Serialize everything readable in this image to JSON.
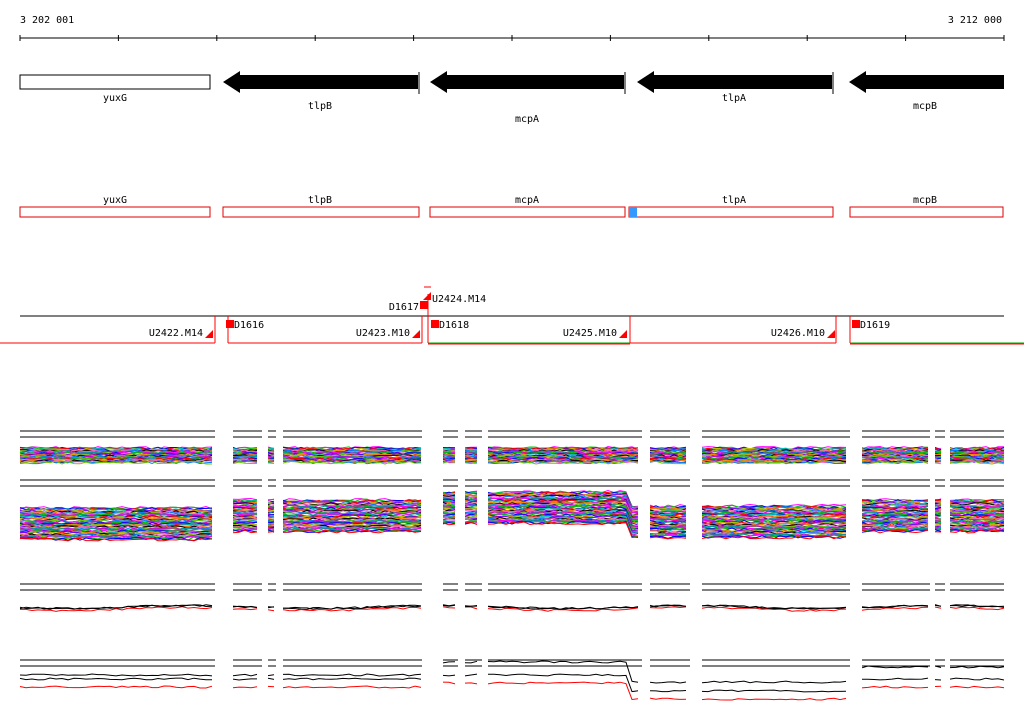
{
  "ruler": {
    "start_label": "3 202 001",
    "end_label": "3 212 000"
  },
  "genes": [
    {
      "name": "yuxG",
      "strand": "+"
    },
    {
      "name": "tlpB",
      "strand": "-"
    },
    {
      "name": "mcpA",
      "strand": "-"
    },
    {
      "name": "tlpA",
      "strand": "-"
    },
    {
      "name": "mcpB",
      "strand": "-"
    }
  ],
  "annotation_track": [
    {
      "name": "yuxG"
    },
    {
      "name": "tlpB"
    },
    {
      "name": "mcpA"
    },
    {
      "name": "tlpA",
      "marker": true
    },
    {
      "name": "mcpB"
    }
  ],
  "features": {
    "downstream": [
      "D1616",
      "D1617",
      "D1618",
      "D1619"
    ],
    "upstream": [
      "U2422.M14",
      "U2423.M10",
      "U2424.M14",
      "U2425.M10",
      "U2426.M10"
    ]
  },
  "colors": {
    "gene_arrow": "#000000",
    "annotation_box": "#e00000",
    "marker": "#3399ff",
    "feature": "#ff0000",
    "baseline_green": "#00aa00",
    "baseline_red": "#ff0000"
  },
  "expression_tracks": [
    {
      "id": "panel-1",
      "type": "multicolor",
      "series_count": 40
    },
    {
      "id": "panel-2",
      "type": "multicolor",
      "series_count": 60
    },
    {
      "id": "panel-3",
      "type": "two-line",
      "series_count": 3
    },
    {
      "id": "panel-4",
      "type": "two-line",
      "series_count": 3
    }
  ]
}
